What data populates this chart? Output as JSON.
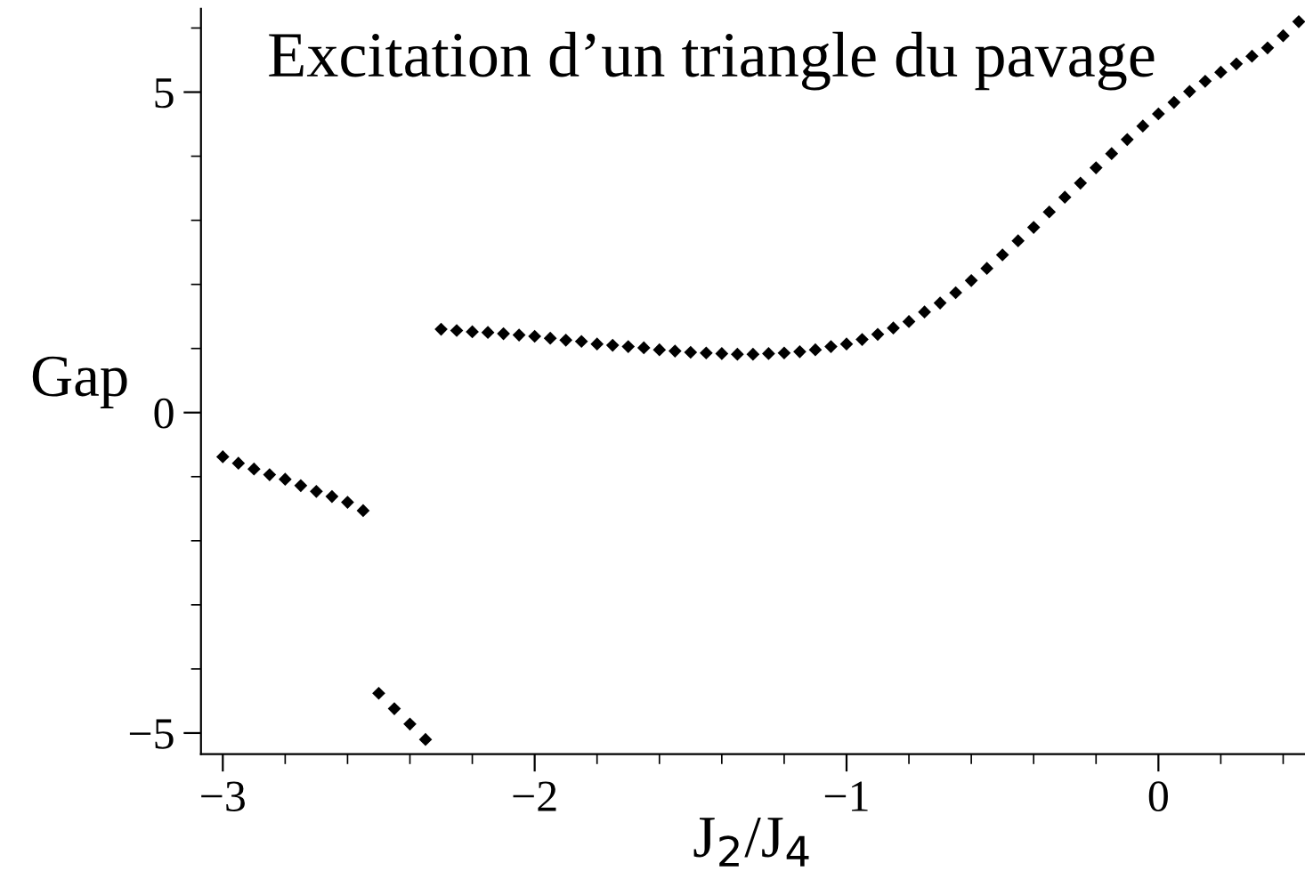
{
  "chart_data": {
    "type": "scatter",
    "title": "Excitation d’un triangle du pavage",
    "xlabel": "J$_{2}$/J$_{4}$",
    "ylabel": "Gap",
    "marker": "diamond",
    "grid": false,
    "legend": false,
    "xlim": [
      -3.07,
      0.47
    ],
    "ylim": [
      -5.33,
      6.3
    ],
    "xticks": [
      {
        "value": -3,
        "label": "−3"
      },
      {
        "value": -2.8,
        "label": null
      },
      {
        "value": -2.6,
        "label": null
      },
      {
        "value": -2.4,
        "label": null
      },
      {
        "value": -2.2,
        "label": null
      },
      {
        "value": -2,
        "label": "−2"
      },
      {
        "value": -1.8,
        "label": null
      },
      {
        "value": -1.6,
        "label": null
      },
      {
        "value": -1.4,
        "label": null
      },
      {
        "value": -1.2,
        "label": null
      },
      {
        "value": -1,
        "label": "−1"
      },
      {
        "value": -0.8,
        "label": null
      },
      {
        "value": -0.6,
        "label": null
      },
      {
        "value": -0.4,
        "label": null
      },
      {
        "value": -0.2,
        "label": null
      },
      0,
      {
        "value": 0.2,
        "label": null
      },
      {
        "value": 0.4,
        "label": null
      }
    ],
    "yticks": [
      {
        "value": -5,
        "label": "−5"
      },
      {
        "value": -4,
        "label": null
      },
      {
        "value": -3,
        "label": null
      },
      {
        "value": -2,
        "label": null
      },
      {
        "value": -1,
        "label": null
      },
      0,
      {
        "value": 1,
        "label": null
      },
      {
        "value": 2,
        "label": null
      },
      {
        "value": 3,
        "label": null
      },
      {
        "value": 4,
        "label": null
      },
      5,
      {
        "value": 6,
        "label": null
      }
    ],
    "series": [
      {
        "color": "#000000",
        "x": [
          -2.3,
          -2.25,
          -2.2,
          -2.15,
          -2.1,
          -2.05,
          -2.0,
          -1.95,
          -1.9,
          -1.85,
          -1.8,
          -1.75,
          -1.7,
          -1.65,
          -1.6,
          -1.55,
          -1.5,
          -1.45,
          -1.4,
          -1.35,
          -1.3,
          -1.25,
          -1.2,
          -1.15,
          -1.1,
          -1.05,
          -1.0,
          -0.95,
          -0.9,
          -0.85,
          -0.8,
          -0.75,
          -0.7,
          -0.65,
          -0.6,
          -0.55,
          -0.5,
          -0.45,
          -0.4,
          -0.35,
          -0.3,
          -0.25,
          -0.2,
          -0.15,
          -0.1,
          -0.05,
          0.0,
          0.05,
          0.1,
          0.15,
          0.2,
          0.25,
          0.3,
          0.35,
          0.4,
          0.45
        ],
        "values": [
          1.3,
          1.28,
          1.26,
          1.25,
          1.23,
          1.21,
          1.19,
          1.16,
          1.13,
          1.11,
          1.07,
          1.05,
          1.03,
          1.01,
          0.98,
          0.96,
          0.94,
          0.93,
          0.92,
          0.91,
          0.91,
          0.92,
          0.93,
          0.95,
          0.98,
          1.03,
          1.07,
          1.14,
          1.22,
          1.32,
          1.42,
          1.57,
          1.71,
          1.87,
          2.06,
          2.25,
          2.46,
          2.68,
          2.89,
          3.13,
          3.36,
          3.58,
          3.82,
          4.04,
          4.26,
          4.47,
          4.66,
          4.84,
          5.01,
          5.17,
          5.31,
          5.44,
          5.56,
          5.69,
          5.88,
          6.1
        ]
      },
      {
        "color": "#000000",
        "x": [
          -3.0,
          -2.95,
          -2.9,
          -2.85,
          -2.8,
          -2.75,
          -2.7,
          -2.65,
          -2.6,
          -2.55
        ],
        "values": [
          -0.69,
          -0.79,
          -0.88,
          -0.97,
          -1.04,
          -1.14,
          -1.23,
          -1.31,
          -1.4,
          -1.53
        ]
      },
      {
        "color": "#000000",
        "x": [
          -2.5,
          -2.45,
          -2.4,
          -2.35
        ],
        "values": [
          -4.38,
          -4.62,
          -4.86,
          -5.1
        ]
      }
    ]
  }
}
